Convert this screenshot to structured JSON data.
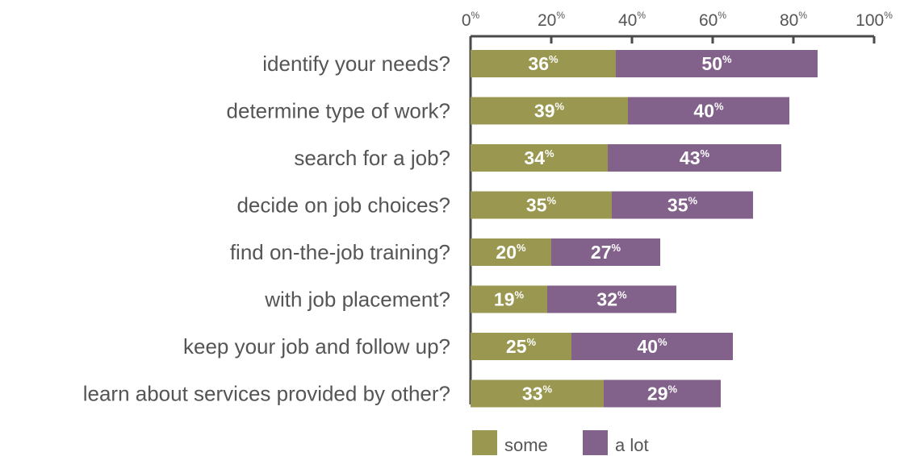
{
  "chart_data": {
    "type": "bar",
    "orientation": "horizontal",
    "stacked": true,
    "categories": [
      "identify your needs?",
      "determine type of work?",
      "search for a job?",
      "decide on job choices?",
      "find on-the-job training?",
      "with job placement?",
      "keep your job and follow up?",
      "learn about services provided by other?"
    ],
    "series": [
      {
        "name": "some",
        "values": [
          36,
          39,
          34,
          35,
          20,
          19,
          25,
          33
        ],
        "color": "#999750"
      },
      {
        "name": "a lot",
        "values": [
          50,
          40,
          43,
          35,
          27,
          32,
          40,
          29
        ],
        "color": "#82628a"
      }
    ],
    "x_ticks": [
      0,
      20,
      40,
      60,
      80,
      100
    ],
    "tick_suffix": "%",
    "value_suffix": "%",
    "xlim": [
      0,
      100
    ],
    "axis_position": "top",
    "legend_position": "bottom",
    "grid": false,
    "title": "",
    "xlabel": "",
    "ylabel": ""
  }
}
